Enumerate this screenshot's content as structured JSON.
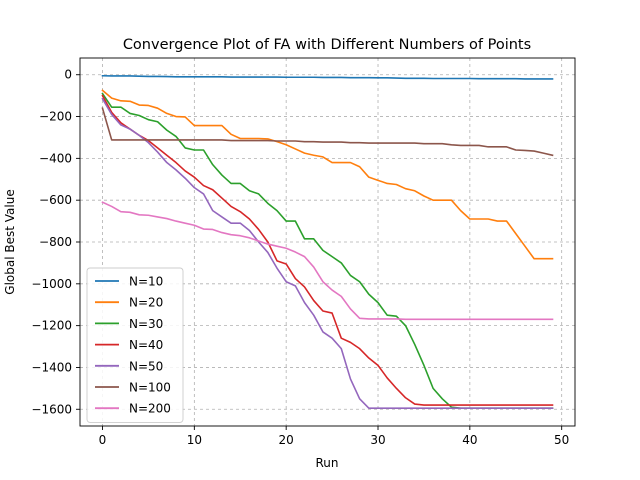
{
  "chart_data": {
    "type": "line",
    "title": "Convergence Plot of FA with Different Numbers of Points",
    "xlabel": "Run",
    "ylabel": "Global Best Value",
    "xlim": [
      -2.45,
      51.45
    ],
    "ylim": [
      -1680,
      80
    ],
    "xticks": [
      0,
      10,
      20,
      30,
      40,
      50
    ],
    "yticks": [
      0,
      -200,
      -400,
      -600,
      -800,
      -1000,
      -1200,
      -1400,
      -1600
    ],
    "ytick_labels": [
      "0",
      "−200",
      "−400",
      "−600",
      "−800",
      "−1000",
      "−1200",
      "−1400",
      "−1600"
    ],
    "grid": true,
    "legend_position": "lower-left",
    "series": [
      {
        "name": "N=10",
        "color": "#1f77b4",
        "values": [
          -5,
          -6,
          -6,
          -6,
          -7,
          -8,
          -8,
          -9,
          -10,
          -10,
          -10,
          -10,
          -10,
          -10,
          -11,
          -11,
          -11,
          -11,
          -11,
          -11,
          -12,
          -12,
          -12,
          -12,
          -13,
          -13,
          -13,
          -14,
          -14,
          -14,
          -15,
          -15,
          -16,
          -17,
          -17,
          -17,
          -18,
          -18,
          -18,
          -18,
          -18,
          -19,
          -19,
          -19,
          -19,
          -19,
          -20,
          -20,
          -20,
          -20
        ]
      },
      {
        "name": "N=20",
        "color": "#ff7f0e",
        "values": [
          -75,
          -112,
          -125,
          -127,
          -145,
          -147,
          -160,
          -185,
          -200,
          -202,
          -243,
          -243,
          -243,
          -243,
          -285,
          -305,
          -305,
          -305,
          -307,
          -320,
          -335,
          -355,
          -375,
          -385,
          -393,
          -420,
          -420,
          -420,
          -440,
          -490,
          -505,
          -520,
          -525,
          -545,
          -555,
          -580,
          -600,
          -600,
          -600,
          -650,
          -690,
          -690,
          -690,
          -700,
          -700,
          -760,
          -820,
          -880,
          -880,
          -880
        ]
      },
      {
        "name": "N=30",
        "color": "#2ca02c",
        "values": [
          -90,
          -155,
          -155,
          -185,
          -195,
          -215,
          -225,
          -265,
          -295,
          -350,
          -360,
          -360,
          -430,
          -480,
          -520,
          -520,
          -555,
          -570,
          -615,
          -650,
          -700,
          -700,
          -785,
          -785,
          -840,
          -870,
          -900,
          -960,
          -990,
          -1050,
          -1090,
          -1150,
          -1155,
          -1200,
          -1290,
          -1390,
          -1500,
          -1550,
          -1590,
          -1595,
          -1595,
          -1595,
          -1595,
          -1595,
          -1595,
          -1595,
          -1595,
          -1595,
          -1595,
          -1595
        ]
      },
      {
        "name": "N=40",
        "color": "#d62728",
        "values": [
          -100,
          -180,
          -230,
          -260,
          -290,
          -315,
          -350,
          -385,
          -420,
          -460,
          -490,
          -530,
          -550,
          -590,
          -630,
          -655,
          -690,
          -740,
          -800,
          -890,
          -905,
          -975,
          -1015,
          -1080,
          -1130,
          -1140,
          -1260,
          -1280,
          -1310,
          -1355,
          -1390,
          -1450,
          -1500,
          -1545,
          -1575,
          -1580,
          -1580,
          -1580,
          -1580,
          -1580,
          -1580,
          -1580,
          -1580,
          -1580,
          -1580,
          -1580,
          -1580,
          -1580,
          -1580,
          -1580
        ]
      },
      {
        "name": "N=50",
        "color": "#9467bd",
        "values": [
          -115,
          -190,
          -240,
          -260,
          -290,
          -325,
          -370,
          -420,
          -455,
          -495,
          -540,
          -570,
          -650,
          -680,
          -710,
          -710,
          -745,
          -800,
          -850,
          -925,
          -990,
          -1010,
          -1090,
          -1150,
          -1230,
          -1260,
          -1310,
          -1455,
          -1550,
          -1595,
          -1595,
          -1595,
          -1595,
          -1595,
          -1595,
          -1595,
          -1595,
          -1595,
          -1595,
          -1595,
          -1595,
          -1595,
          -1595,
          -1595,
          -1595,
          -1595,
          -1595,
          -1595,
          -1595,
          -1595
        ]
      },
      {
        "name": "N=100",
        "color": "#8c564b",
        "values": [
          -160,
          -312,
          -312,
          -312,
          -312,
          -312,
          -312,
          -312,
          -312,
          -312,
          -312,
          -312,
          -312,
          -312,
          -315,
          -315,
          -315,
          -315,
          -315,
          -317,
          -317,
          -317,
          -320,
          -320,
          -322,
          -322,
          -322,
          -325,
          -325,
          -327,
          -327,
          -327,
          -327,
          -327,
          -327,
          -330,
          -330,
          -330,
          -335,
          -338,
          -338,
          -338,
          -345,
          -345,
          -345,
          -360,
          -362,
          -365,
          -375,
          -385
        ]
      },
      {
        "name": "N=200",
        "color": "#e377c2",
        "values": [
          -610,
          -630,
          -655,
          -658,
          -670,
          -672,
          -680,
          -688,
          -700,
          -710,
          -720,
          -738,
          -740,
          -755,
          -765,
          -770,
          -780,
          -795,
          -810,
          -820,
          -830,
          -848,
          -870,
          -920,
          -990,
          -1030,
          -1060,
          -1120,
          -1165,
          -1168,
          -1168,
          -1168,
          -1168,
          -1170,
          -1170,
          -1170,
          -1170,
          -1170,
          -1170,
          -1170,
          -1170,
          -1170,
          -1170,
          -1170,
          -1170,
          -1170,
          -1170,
          -1170,
          -1170,
          -1170
        ]
      }
    ]
  }
}
